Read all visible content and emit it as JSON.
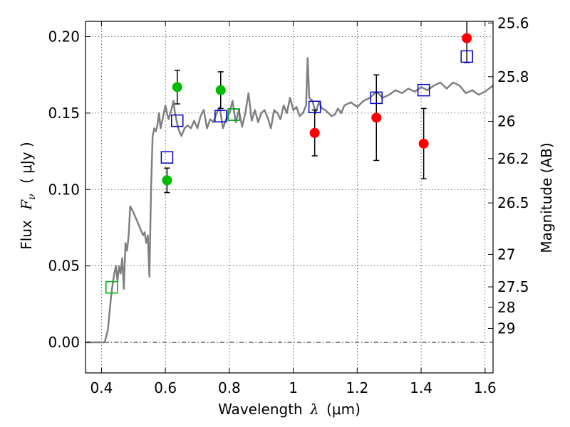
{
  "chart_data": {
    "type": "scatter",
    "xlabel": {
      "text": "Wavelength",
      "symbol": "λ",
      "unit": "(μm)"
    },
    "ylabel": {
      "text": "Flux",
      "symbol": "F",
      "subscript": "ν",
      "unit": "( μJy )"
    },
    "y2label": "Magnitude (AB)",
    "xlim": [
      0.35,
      1.625
    ],
    "ylim": [
      -0.02,
      0.21
    ],
    "x_ticks": [
      0.4,
      0.6,
      0.8,
      1.0,
      1.2,
      1.4,
      1.6
    ],
    "x_tick_labels": [
      "0.4",
      "0.6",
      "0.8",
      "1",
      "1.2",
      "1.4",
      "1.6"
    ],
    "y_ticks": [
      0.0,
      0.05,
      0.1,
      0.15,
      0.2
    ],
    "y_tick_labels": [
      "0.00",
      "0.05",
      "0.10",
      "0.15",
      "0.20"
    ],
    "y2_ticks": [
      {
        "mag": 25.6,
        "label": "25.6"
      },
      {
        "mag": 25.8,
        "label": "25.8"
      },
      {
        "mag": 26.0,
        "label": "26"
      },
      {
        "mag": 26.2,
        "label": "26.2"
      },
      {
        "mag": 26.5,
        "label": "26.5"
      },
      {
        "mag": 27.0,
        "label": "27"
      },
      {
        "mag": 27.5,
        "label": "27.5"
      },
      {
        "mag": 28.0,
        "label": "28"
      },
      {
        "mag": 29.0,
        "label": "29"
      }
    ],
    "grid": true,
    "zero_line": true,
    "series": [
      {
        "kind": "line",
        "color": "#808080",
        "x": [
          0.35,
          0.41,
          0.42,
          0.43,
          0.435,
          0.44,
          0.445,
          0.45,
          0.455,
          0.46,
          0.465,
          0.47,
          0.475,
          0.48,
          0.485,
          0.49,
          0.5,
          0.51,
          0.52,
          0.53,
          0.535,
          0.54,
          0.545,
          0.55,
          0.555,
          0.56,
          0.565,
          0.57,
          0.575,
          0.58,
          0.585,
          0.59,
          0.6,
          0.605,
          0.61,
          0.62,
          0.625,
          0.63,
          0.64,
          0.65,
          0.66,
          0.67,
          0.68,
          0.69,
          0.7,
          0.71,
          0.72,
          0.73,
          0.74,
          0.75,
          0.76,
          0.77,
          0.78,
          0.79,
          0.8,
          0.81,
          0.82,
          0.83,
          0.84,
          0.85,
          0.86,
          0.87,
          0.88,
          0.89,
          0.9,
          0.91,
          0.92,
          0.93,
          0.94,
          0.95,
          0.96,
          0.97,
          0.98,
          0.99,
          1.0,
          1.01,
          1.02,
          1.03,
          1.04,
          1.045,
          1.05,
          1.06,
          1.07,
          1.08,
          1.09,
          1.1,
          1.11,
          1.12,
          1.13,
          1.14,
          1.15,
          1.16,
          1.18,
          1.2,
          1.22,
          1.24,
          1.26,
          1.28,
          1.3,
          1.32,
          1.34,
          1.36,
          1.38,
          1.4,
          1.42,
          1.44,
          1.46,
          1.48,
          1.5,
          1.52,
          1.54,
          1.56,
          1.58,
          1.6,
          1.625
        ],
        "y": [
          0.0,
          0.0,
          0.008,
          0.03,
          0.038,
          0.045,
          0.05,
          0.04,
          0.05,
          0.045,
          0.055,
          0.035,
          0.065,
          0.06,
          0.07,
          0.089,
          0.085,
          0.08,
          0.075,
          0.07,
          0.072,
          0.065,
          0.07,
          0.043,
          0.1,
          0.135,
          0.14,
          0.138,
          0.142,
          0.15,
          0.14,
          0.145,
          0.155,
          0.15,
          0.146,
          0.153,
          0.158,
          0.15,
          0.14,
          0.135,
          0.14,
          0.142,
          0.14,
          0.145,
          0.14,
          0.148,
          0.152,
          0.14,
          0.146,
          0.144,
          0.15,
          0.154,
          0.14,
          0.146,
          0.15,
          0.158,
          0.144,
          0.152,
          0.141,
          0.15,
          0.163,
          0.145,
          0.152,
          0.144,
          0.15,
          0.152,
          0.147,
          0.14,
          0.152,
          0.15,
          0.146,
          0.155,
          0.15,
          0.16,
          0.152,
          0.154,
          0.148,
          0.15,
          0.155,
          0.186,
          0.16,
          0.158,
          0.15,
          0.157,
          0.153,
          0.152,
          0.15,
          0.148,
          0.149,
          0.153,
          0.15,
          0.155,
          0.157,
          0.154,
          0.158,
          0.16,
          0.164,
          0.16,
          0.162,
          0.165,
          0.163,
          0.166,
          0.164,
          0.167,
          0.165,
          0.168,
          0.17,
          0.166,
          0.17,
          0.168,
          0.163,
          0.165,
          0.162,
          0.164,
          0.168
        ]
      },
      {
        "kind": "markers",
        "marker": "circle",
        "color": "#00bb00",
        "points": [
          {
            "x": 0.605,
            "y": 0.106,
            "err": 0.008
          },
          {
            "x": 0.637,
            "y": 0.167,
            "err": 0.011
          },
          {
            "x": 0.773,
            "y": 0.165,
            "err": 0.012
          }
        ]
      },
      {
        "kind": "markers",
        "marker": "circle",
        "color": "#ff0000",
        "points": [
          {
            "x": 1.067,
            "y": 0.137,
            "err": 0.015
          },
          {
            "x": 1.26,
            "y": 0.147,
            "err": 0.028
          },
          {
            "x": 1.408,
            "y": 0.13,
            "err": 0.023
          },
          {
            "x": 1.543,
            "y": 0.199,
            "err": 0.016
          }
        ]
      },
      {
        "kind": "markers",
        "marker": "square",
        "color": "#0000cc",
        "points": [
          {
            "x": 0.432,
            "y": 0.036
          },
          {
            "x": 0.605,
            "y": 0.121
          },
          {
            "x": 0.637,
            "y": 0.145
          },
          {
            "x": 0.773,
            "y": 0.148
          },
          {
            "x": 0.814,
            "y": 0.149
          },
          {
            "x": 1.067,
            "y": 0.154
          },
          {
            "x": 1.26,
            "y": 0.16
          },
          {
            "x": 1.408,
            "y": 0.165
          },
          {
            "x": 1.543,
            "y": 0.187
          }
        ]
      },
      {
        "kind": "markers",
        "marker": "square",
        "color": "#00bb00",
        "points": [
          {
            "x": 0.432,
            "y": 0.036
          },
          {
            "x": 0.814,
            "y": 0.149
          }
        ]
      }
    ]
  }
}
